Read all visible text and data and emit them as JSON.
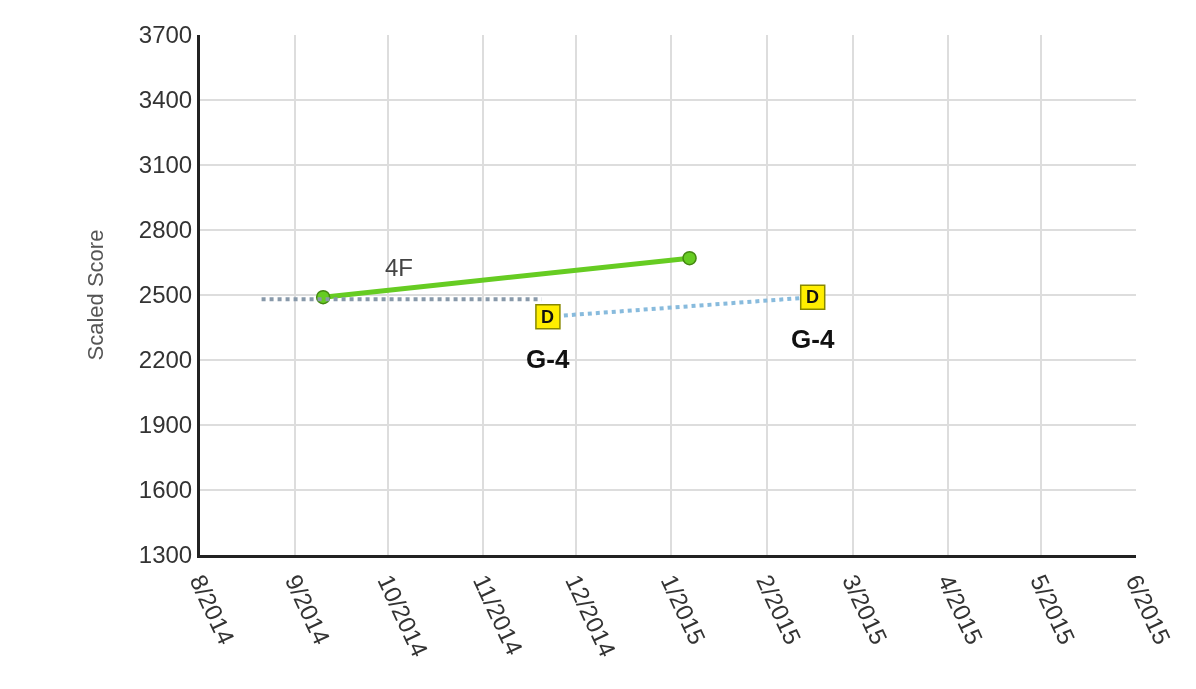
{
  "chart_data": {
    "type": "line",
    "ylabel": "Scaled Score",
    "xlim": [
      "2014-08-01",
      "2015-06-01"
    ],
    "xticks": [
      {
        "value": "2014-08-01",
        "label": "8/2014"
      },
      {
        "value": "2014-09-01",
        "label": "9/2014"
      },
      {
        "value": "2014-10-01",
        "label": "10/2014"
      },
      {
        "value": "2014-11-01",
        "label": "11/2014"
      },
      {
        "value": "2014-12-01",
        "label": "12/2014"
      },
      {
        "value": "2015-01-01",
        "label": "1/2015"
      },
      {
        "value": "2015-02-01",
        "label": "2/2015"
      },
      {
        "value": "2015-03-01",
        "label": "3/2015"
      },
      {
        "value": "2015-04-01",
        "label": "4/2015"
      },
      {
        "value": "2015-05-01",
        "label": "5/2015"
      },
      {
        "value": "2015-06-01",
        "label": "6/2015"
      }
    ],
    "ylim": [
      1300,
      3700
    ],
    "yticks": [
      1300,
      1600,
      1900,
      2200,
      2500,
      2800,
      3100,
      3400,
      3700
    ],
    "grid": true,
    "series": [
      {
        "name": "4F",
        "color": "#66cc22",
        "x": [
          "2014-09-10",
          "2015-01-07"
        ],
        "values": [
          2490,
          2670
        ],
        "marker": "circle",
        "line_style": "solid"
      },
      {
        "color": "#8899aa",
        "x": [
          "2014-08-21",
          "2014-11-20"
        ],
        "values": [
          2480,
          2480
        ],
        "marker": "none",
        "line_style": "dotted"
      },
      {
        "color": "#88bbdd",
        "x": [
          "2014-11-22",
          "2015-02-16"
        ],
        "values": [
          2400,
          2490
        ],
        "marker": "square",
        "line_style": "dotted"
      }
    ],
    "annotations": [
      {
        "text": "D",
        "x": "2014-11-22",
        "y": 2400
      },
      {
        "text": "D",
        "x": "2015-02-16",
        "y": 2490
      },
      {
        "text": "G-4",
        "x": "2014-11-22",
        "y": 2400
      },
      {
        "text": "G-4",
        "x": "2015-02-16",
        "y": 2490
      }
    ]
  }
}
